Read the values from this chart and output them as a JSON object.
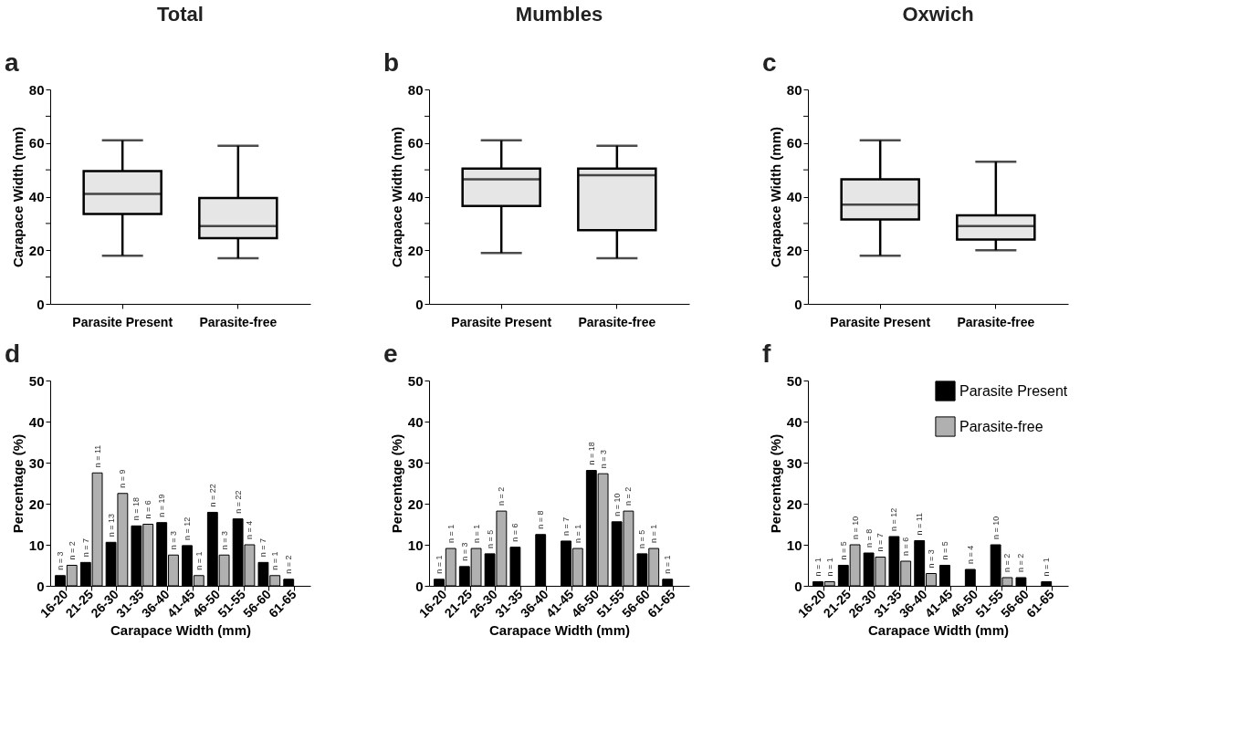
{
  "chart_data": [
    {
      "type": "box",
      "title": "Total",
      "annotations": [
        "a"
      ],
      "categories": [
        "Parasite Present",
        "Parasite-free"
      ],
      "ylabel": "Carapace Width (mm)",
      "ylim": [
        0,
        80
      ],
      "yticks": [
        0,
        {
          "value": 10,
          "label": null
        },
        20,
        {
          "value": 30,
          "label": null
        },
        40,
        {
          "value": 50,
          "label": null
        },
        60,
        {
          "value": 70,
          "label": null
        },
        80
      ],
      "colors": [
        "#e6e6e6",
        "#e6e6e6"
      ],
      "boxes": [
        {
          "low": 18,
          "q1": 33.5,
          "median": 41,
          "q3": 49.5,
          "high": 61
        },
        {
          "low": 17,
          "q1": 24.5,
          "median": 29,
          "q3": 39.5,
          "high": 59
        }
      ]
    },
    {
      "type": "box",
      "title": "Mumbles",
      "annotations": [
        "b"
      ],
      "categories": [
        "Parasite Present",
        "Parasite-free"
      ],
      "ylabel": "Carapace Width (mm)",
      "ylim": [
        0,
        80
      ],
      "yticks": [
        0,
        {
          "value": 10,
          "label": null
        },
        20,
        {
          "value": 30,
          "label": null
        },
        40,
        {
          "value": 50,
          "label": null
        },
        60,
        {
          "value": 70,
          "label": null
        },
        80
      ],
      "colors": [
        "#e6e6e6",
        "#e6e6e6"
      ],
      "boxes": [
        {
          "low": 19,
          "q1": 36.5,
          "median": 46.5,
          "q3": 50.5,
          "high": 61
        },
        {
          "low": 17,
          "q1": 27.5,
          "median": 48,
          "q3": 50.5,
          "high": 59
        }
      ]
    },
    {
      "type": "box",
      "title": "Oxwich",
      "annotations": [
        "c"
      ],
      "categories": [
        "Parasite Present",
        "Parasite-free"
      ],
      "ylabel": "Carapace Width (mm)",
      "ylim": [
        0,
        80
      ],
      "yticks": [
        0,
        {
          "value": 10,
          "label": null
        },
        20,
        {
          "value": 30,
          "label": null
        },
        40,
        {
          "value": 50,
          "label": null
        },
        60,
        {
          "value": 70,
          "label": null
        },
        80
      ],
      "colors": [
        "#e6e6e6",
        "#e6e6e6"
      ],
      "boxes": [
        {
          "low": 18,
          "q1": 31.5,
          "median": 37,
          "q3": 46.5,
          "high": 61
        },
        {
          "low": 20,
          "q1": 24,
          "median": 29,
          "q3": 33,
          "high": 53
        }
      ]
    },
    {
      "type": "bar",
      "categories": [
        "16-20",
        "21-25",
        "26-30",
        "31-35",
        "36-40",
        "41-45",
        "46-50",
        "51-55",
        "56-60",
        "61-65"
      ],
      "xlabel": "Carapace Width (mm)",
      "ylabel": "Percentage (%)",
      "ylim": [
        0,
        50
      ],
      "yticks": [
        0,
        10,
        20,
        30,
        40,
        50
      ],
      "series": [
        {
          "color": "#000000",
          "values": [
            2.5,
            5.7,
            10.6,
            14.6,
            15.4,
            9.8,
            17.9,
            16.3,
            5.7,
            1.6
          ]
        },
        {
          "color": "#b0b0b0",
          "values": [
            5,
            27.5,
            22.5,
            15,
            7.5,
            2.5,
            7.5,
            10,
            2.5,
            null
          ]
        }
      ],
      "annotations": [
        "d",
        {
          "text": "n = 3",
          "x": "16-20",
          "y": 2.5
        },
        {
          "text": "n = 7",
          "x": "21-25",
          "y": 5.7
        },
        {
          "text": "n = 13",
          "x": "26-30",
          "y": 10.6
        },
        {
          "text": "n = 18",
          "x": "31-35",
          "y": 14.6
        },
        {
          "text": "n = 19",
          "x": "36-40",
          "y": 15.4
        },
        {
          "text": "n = 12",
          "x": "41-45",
          "y": 9.8
        },
        {
          "text": "n = 22",
          "x": "46-50",
          "y": 17.9
        },
        {
          "text": "n = 22",
          "x": "51-55",
          "y": 16.3
        },
        {
          "text": "n = 7",
          "x": "56-60",
          "y": 5.7
        },
        {
          "text": "n = 2",
          "x": "61-65",
          "y": 1.6
        },
        {
          "text": "n = 2",
          "x": "16-20",
          "y": 5
        },
        {
          "text": "n = 11",
          "x": "21-25",
          "y": 27.5
        },
        {
          "text": "n = 9",
          "x": "26-30",
          "y": 22.5
        },
        {
          "text": "n = 6",
          "x": "31-35",
          "y": 15
        },
        {
          "text": "n = 3",
          "x": "36-40",
          "y": 7.5
        },
        {
          "text": "n = 1",
          "x": "41-45",
          "y": 2.5
        },
        {
          "text": "n = 3",
          "x": "46-50",
          "y": 7.5
        },
        {
          "text": "n = 4",
          "x": "51-55",
          "y": 10
        },
        {
          "text": "n = 1",
          "x": "56-60",
          "y": 2.5
        }
      ]
    },
    {
      "type": "bar",
      "categories": [
        "16-20",
        "21-25",
        "26-30",
        "31-35",
        "36-40",
        "41-45",
        "46-50",
        "51-55",
        "56-60",
        "61-65"
      ],
      "xlabel": "Carapace Width (mm)",
      "ylabel": "Percentage (%)",
      "ylim": [
        0,
        50
      ],
      "yticks": [
        0,
        10,
        20,
        30,
        40,
        50
      ],
      "series": [
        {
          "color": "#000000",
          "values": [
            1.6,
            4.7,
            7.8,
            9.4,
            12.5,
            10.9,
            28.1,
            15.6,
            7.8,
            1.6
          ]
        },
        {
          "color": "#b0b0b0",
          "values": [
            9.1,
            9.1,
            18.2,
            null,
            null,
            9.1,
            27.3,
            18.2,
            9.1,
            null
          ]
        }
      ],
      "annotations": [
        "e",
        {
          "text": "n = 1",
          "x": "16-20",
          "y": 1.6
        },
        {
          "text": "n = 3",
          "x": "21-25",
          "y": 4.7
        },
        {
          "text": "n = 5",
          "x": "26-30",
          "y": 7.8
        },
        {
          "text": "n = 6",
          "x": "31-35",
          "y": 9.4
        },
        {
          "text": "n = 8",
          "x": "36-40",
          "y": 12.5
        },
        {
          "text": "n = 7",
          "x": "41-45",
          "y": 10.9
        },
        {
          "text": "n = 18",
          "x": "46-50",
          "y": 28.1
        },
        {
          "text": "n = 10",
          "x": "51-55",
          "y": 15.6
        },
        {
          "text": "n = 5",
          "x": "56-60",
          "y": 7.8
        },
        {
          "text": "n = 1",
          "x": "61-65",
          "y": 1.6
        },
        {
          "text": "n = 1",
          "x": "16-20",
          "y": 9.1
        },
        {
          "text": "n = 1",
          "x": "21-25",
          "y": 9.1
        },
        {
          "text": "n = 2",
          "x": "26-30",
          "y": 18.2
        },
        {
          "text": "n = 1",
          "x": "41-45",
          "y": 9.1
        },
        {
          "text": "n = 3",
          "x": "46-50",
          "y": 27.3
        },
        {
          "text": "n = 2",
          "x": "51-55",
          "y": 18.2
        },
        {
          "text": "n = 1",
          "x": "56-60",
          "y": 9.1
        }
      ]
    },
    {
      "type": "bar",
      "categories": [
        "16-20",
        "21-25",
        "26-30",
        "31-35",
        "36-40",
        "41-45",
        "46-50",
        "51-55",
        "56-60",
        "61-65"
      ],
      "xlabel": "Carapace Width (mm)",
      "ylabel": "Percentage (%)",
      "ylim": [
        0,
        50
      ],
      "yticks": [
        0,
        10,
        20,
        30,
        40,
        50
      ],
      "legend": "top right",
      "series": [
        {
          "name": "Parasite Present",
          "color": "#000000",
          "values": [
            1,
            5,
            8,
            12,
            11,
            5,
            4,
            10,
            2,
            1
          ]
        },
        {
          "name": "Parasite-free",
          "color": "#b0b0b0",
          "values": [
            1,
            10,
            7,
            6,
            3,
            null,
            null,
            2,
            null,
            null
          ]
        }
      ],
      "annotations": [
        "f",
        {
          "text": "n = 1",
          "x": "16-20",
          "y": 1
        },
        {
          "text": "n = 5",
          "x": "21-25",
          "y": 5
        },
        {
          "text": "n = 8",
          "x": "26-30",
          "y": 8
        },
        {
          "text": "n = 12",
          "x": "31-35",
          "y": 12
        },
        {
          "text": "n = 11",
          "x": "36-40",
          "y": 11
        },
        {
          "text": "n = 5",
          "x": "41-45",
          "y": 5
        },
        {
          "text": "n = 4",
          "x": "46-50",
          "y": 4
        },
        {
          "text": "n = 10",
          "x": "51-55",
          "y": 10
        },
        {
          "text": "n = 2",
          "x": "56-60",
          "y": 2
        },
        {
          "text": "n = 1",
          "x": "61-65",
          "y": 1
        },
        {
          "text": "n = 1",
          "x": "16-20",
          "y": 1
        },
        {
          "text": "n = 10",
          "x": "21-25",
          "y": 10
        },
        {
          "text": "n = 7",
          "x": "26-30",
          "y": 7
        },
        {
          "text": "n = 6",
          "x": "31-35",
          "y": 6
        },
        {
          "text": "n = 3",
          "x": "36-40",
          "y": 3
        },
        {
          "text": "n = 2",
          "x": "51-55",
          "y": 2
        }
      ]
    }
  ]
}
